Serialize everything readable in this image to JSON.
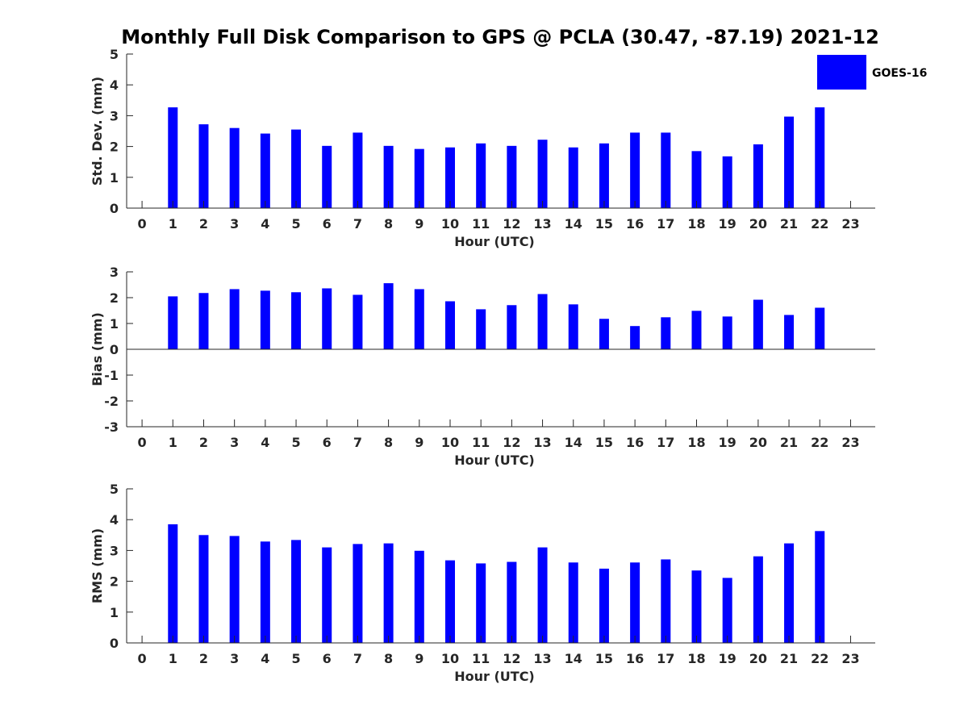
{
  "figure": {
    "title": "Monthly Full Disk Comparison to GPS @ PCLA (30.47, -87.19) 2021-12",
    "legend": {
      "label": "GOES-16",
      "placement": "top-right"
    },
    "colors": {
      "bar": "#0000ff",
      "axis": "#262626",
      "background": "#ffffff"
    }
  },
  "chart_data": [
    {
      "type": "bar",
      "series": [
        {
          "name": "GOES-16",
          "color": "#0000ff"
        }
      ],
      "xlabel": "Hour (UTC)",
      "ylabel": "Std. Dev. (mm)",
      "ylim": [
        0,
        5
      ],
      "yticks": [
        0,
        1,
        2,
        3,
        4,
        5
      ],
      "xticks": [
        0,
        1,
        2,
        3,
        4,
        5,
        6,
        7,
        8,
        9,
        10,
        11,
        12,
        13,
        14,
        15,
        16,
        17,
        18,
        19,
        20,
        21,
        22,
        23
      ],
      "x": [
        1,
        2,
        3,
        4,
        5,
        6,
        7,
        8,
        9,
        10,
        11,
        12,
        13,
        14,
        15,
        16,
        17,
        18,
        19,
        20,
        21,
        22
      ],
      "values": [
        3.27,
        2.72,
        2.6,
        2.42,
        2.55,
        2.02,
        2.45,
        2.02,
        1.92,
        1.97,
        2.1,
        2.02,
        2.22,
        1.97,
        2.1,
        2.45,
        2.45,
        1.85,
        1.68,
        2.07,
        2.97,
        3.27
      ],
      "grid": false
    },
    {
      "type": "bar",
      "series": [
        {
          "name": "GOES-16",
          "color": "#0000ff"
        }
      ],
      "xlabel": "Hour (UTC)",
      "ylabel": "Bias (mm)",
      "ylim": [
        -3,
        3
      ],
      "yticks": [
        -3,
        -2,
        -1,
        0,
        1,
        2,
        3
      ],
      "xticks": [
        0,
        1,
        2,
        3,
        4,
        5,
        6,
        7,
        8,
        9,
        10,
        11,
        12,
        13,
        14,
        15,
        16,
        17,
        18,
        19,
        20,
        21,
        22,
        23
      ],
      "x": [
        1,
        2,
        3,
        4,
        5,
        6,
        7,
        8,
        9,
        10,
        11,
        12,
        13,
        14,
        15,
        16,
        17,
        18,
        19,
        20,
        21,
        22
      ],
      "values": [
        2.05,
        2.18,
        2.33,
        2.27,
        2.21,
        2.36,
        2.11,
        2.56,
        2.33,
        1.86,
        1.55,
        1.71,
        2.14,
        1.74,
        1.18,
        0.9,
        1.24,
        1.49,
        1.27,
        1.92,
        1.33,
        1.61
      ],
      "grid": false
    },
    {
      "type": "bar",
      "series": [
        {
          "name": "GOES-16",
          "color": "#0000ff"
        }
      ],
      "xlabel": "Hour (UTC)",
      "ylabel": "RMS (mm)",
      "ylim": [
        0,
        5
      ],
      "yticks": [
        0,
        1,
        2,
        3,
        4,
        5
      ],
      "xticks": [
        0,
        1,
        2,
        3,
        4,
        5,
        6,
        7,
        8,
        9,
        10,
        11,
        12,
        13,
        14,
        15,
        16,
        17,
        18,
        19,
        20,
        21,
        22,
        23
      ],
      "x": [
        1,
        2,
        3,
        4,
        5,
        6,
        7,
        8,
        9,
        10,
        11,
        12,
        13,
        14,
        15,
        16,
        17,
        18,
        19,
        20,
        21,
        22
      ],
      "values": [
        3.85,
        3.5,
        3.47,
        3.29,
        3.34,
        3.1,
        3.21,
        3.23,
        2.99,
        2.68,
        2.58,
        2.63,
        3.1,
        2.61,
        2.41,
        2.61,
        2.71,
        2.35,
        2.11,
        2.81,
        3.23,
        3.63
      ],
      "grid": false
    }
  ]
}
